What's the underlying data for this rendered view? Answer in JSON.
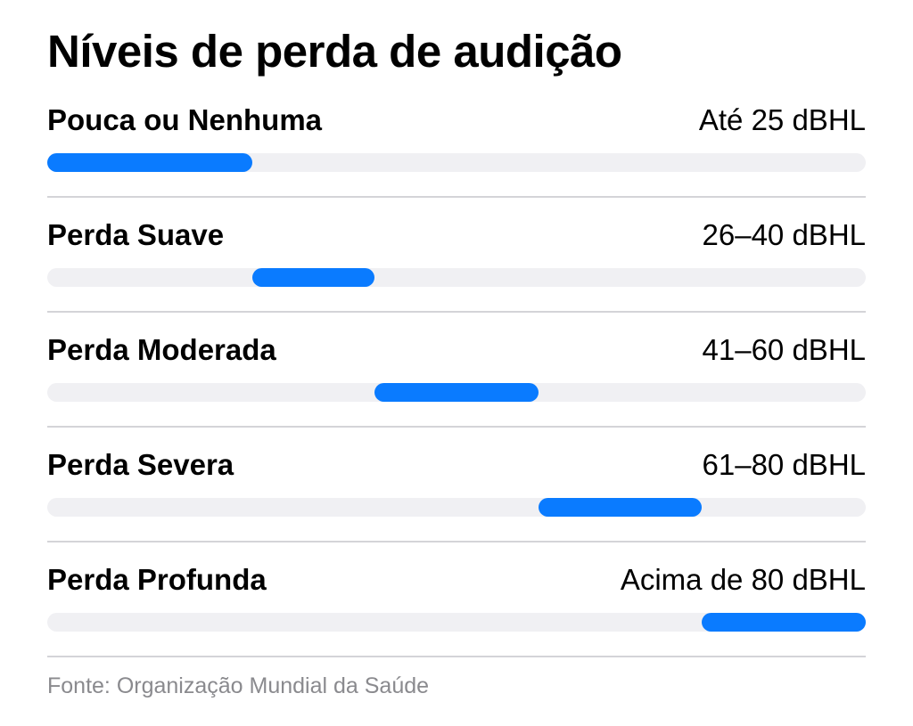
{
  "title": "Níveis de perda de audição",
  "colors": {
    "accent": "#0a7bff",
    "track": "#f0f0f3",
    "divider": "#d4d4d8",
    "source_text": "#8a8a8e"
  },
  "scale": {
    "min_dbhl": 0,
    "max_dbhl": 100
  },
  "levels": [
    {
      "label": "Pouca ou Nenhuma",
      "range": "Até 25 dBHL",
      "band_start": 0,
      "band_end": 25
    },
    {
      "label": "Perda Suave",
      "range": "26–40 dBHL",
      "band_start": 25,
      "band_end": 40
    },
    {
      "label": "Perda Moderada",
      "range": "41–60 dBHL",
      "band_start": 40,
      "band_end": 60
    },
    {
      "label": "Perda Severa",
      "range": "61–80 dBHL",
      "band_start": 60,
      "band_end": 80
    },
    {
      "label": "Perda Profunda",
      "range": "Acima de 80 dBHL",
      "band_start": 80,
      "band_end": 100
    }
  ],
  "source": "Fonte: Organização Mundial da Saúde"
}
